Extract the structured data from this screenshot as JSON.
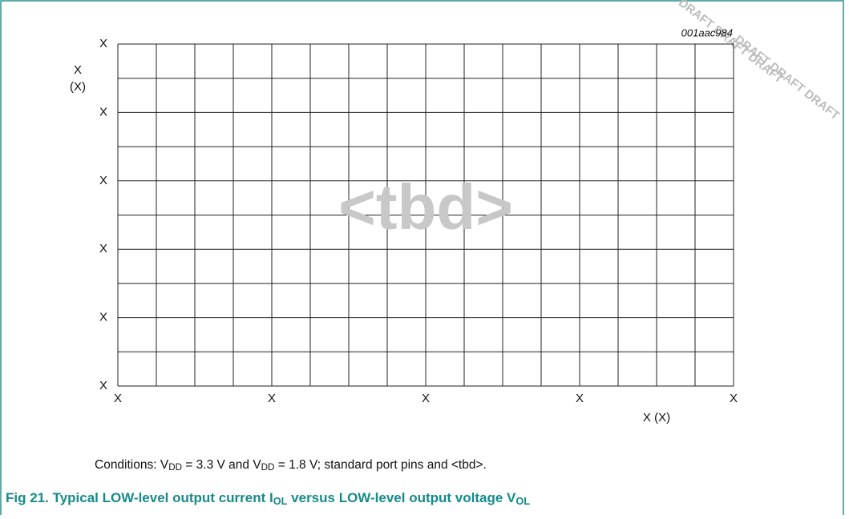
{
  "figure": {
    "id_code": "001aac984",
    "placeholder": "<tbd>",
    "watermark": [
      "DRAFT DRAFT DRAFT",
      "DRAFT DRAFT DRAFT"
    ],
    "y_axis": {
      "label": "X",
      "unit": "(X)",
      "ticks": [
        "X",
        "X",
        "X",
        "X",
        "X",
        "X"
      ]
    },
    "x_axis": {
      "label": "X (X)",
      "ticks": [
        "X",
        "X",
        "X",
        "X",
        "X"
      ]
    },
    "conditions": [
      {
        "text": "Conditions: V",
        "sub": false
      },
      {
        "text": "DD",
        "sub": true
      },
      {
        "text": " = 3.3 V and V",
        "sub": false
      },
      {
        "text": "DD",
        "sub": true
      },
      {
        "text": " = 1.8 V; standard port pins and <tbd>.",
        "sub": false
      }
    ],
    "caption": [
      {
        "text": "Fig 21.   Typical LOW-level output current I",
        "sub": false
      },
      {
        "text": "OL",
        "sub": true
      },
      {
        "text": " versus LOW-level output voltage V",
        "sub": false
      },
      {
        "text": "OL",
        "sub": true
      }
    ]
  }
}
